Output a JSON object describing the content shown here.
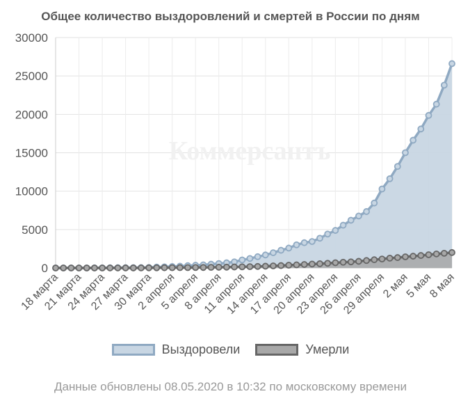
{
  "chart_data": {
    "type": "area",
    "title": "Общее количество выздоровлений и смертей в России по дням",
    "watermark": "Коммерсантъ",
    "footnote": "Данные обновлены 08.05.2020 в 10:32 по московскому времени",
    "ylim": [
      0,
      30000
    ],
    "yticks": [
      "0",
      "5000",
      "10000",
      "15000",
      "20000",
      "25000",
      "30000"
    ],
    "xtick_labels": [
      "18 марта",
      "21 марта",
      "24 марта",
      "27 марта",
      "30 марта",
      "2 апреля",
      "5 апреля",
      "8 апреля",
      "11 апреля",
      "14 апреля",
      "17 апреля",
      "20 апреля",
      "23 апреля",
      "26 апреля",
      "29 апреля",
      "2 мая",
      "5 мая",
      "8 мая"
    ],
    "x": [
      "18 марта",
      "19 марта",
      "20 марта",
      "21 марта",
      "22 марта",
      "23 марта",
      "24 марта",
      "25 марта",
      "26 марта",
      "27 марта",
      "28 марта",
      "29 марта",
      "30 марта",
      "31 марта",
      "1 апреля",
      "2 апреля",
      "3 апреля",
      "4 апреля",
      "5 апреля",
      "6 апреля",
      "7 апреля",
      "8 апреля",
      "9 апреля",
      "10 апреля",
      "11 апреля",
      "12 апреля",
      "13 апреля",
      "14 апреля",
      "15 апреля",
      "16 апреля",
      "17 апреля",
      "18 апреля",
      "19 апреля",
      "20 апреля",
      "21 апреля",
      "22 апреля",
      "23 апреля",
      "24 апреля",
      "25 апреля",
      "26 апреля",
      "27 апреля",
      "28 апреля",
      "29 апреля",
      "30 апреля",
      "1 мая",
      "2 мая",
      "3 мая",
      "4 мая",
      "5 мая",
      "6 мая",
      "7 мая",
      "8 мая"
    ],
    "series": [
      {
        "name": "Выздоровели",
        "fill": "#c8d6e3",
        "stroke": "#8fa9c2",
        "values": [
          8,
          8,
          8,
          8,
          8,
          16,
          22,
          29,
          39,
          43,
          45,
          49,
          66,
          121,
          150,
          190,
          235,
          298,
          355,
          406,
          494,
          580,
          673,
          795,
          1045,
          1238,
          1470,
          1694,
          1986,
          2304,
          2590,
          3012,
          3291,
          3446,
          3873,
          4420,
          4891,
          5568,
          6216,
          6767,
          7346,
          8456,
          10286,
          11619,
          13220,
          15013,
          16639,
          18097,
          19865,
          21327,
          23803,
          26608
        ]
      },
      {
        "name": "Умерли",
        "fill": "#a8a8a8",
        "stroke": "#666666",
        "values": [
          0,
          1,
          1,
          1,
          1,
          1,
          2,
          3,
          3,
          4,
          4,
          8,
          17,
          24,
          30,
          34,
          43,
          47,
          58,
          63,
          76,
          94,
          106,
          130,
          148,
          170,
          198,
          232,
          273,
          313,
          361,
          405,
          456,
          513,
          555,
          612,
          681,
          747,
          794,
          867,
          972,
          1073,
          1169,
          1280,
          1356,
          1451,
          1537,
          1625,
          1723,
          1827,
          1915,
          2009
        ]
      }
    ]
  }
}
